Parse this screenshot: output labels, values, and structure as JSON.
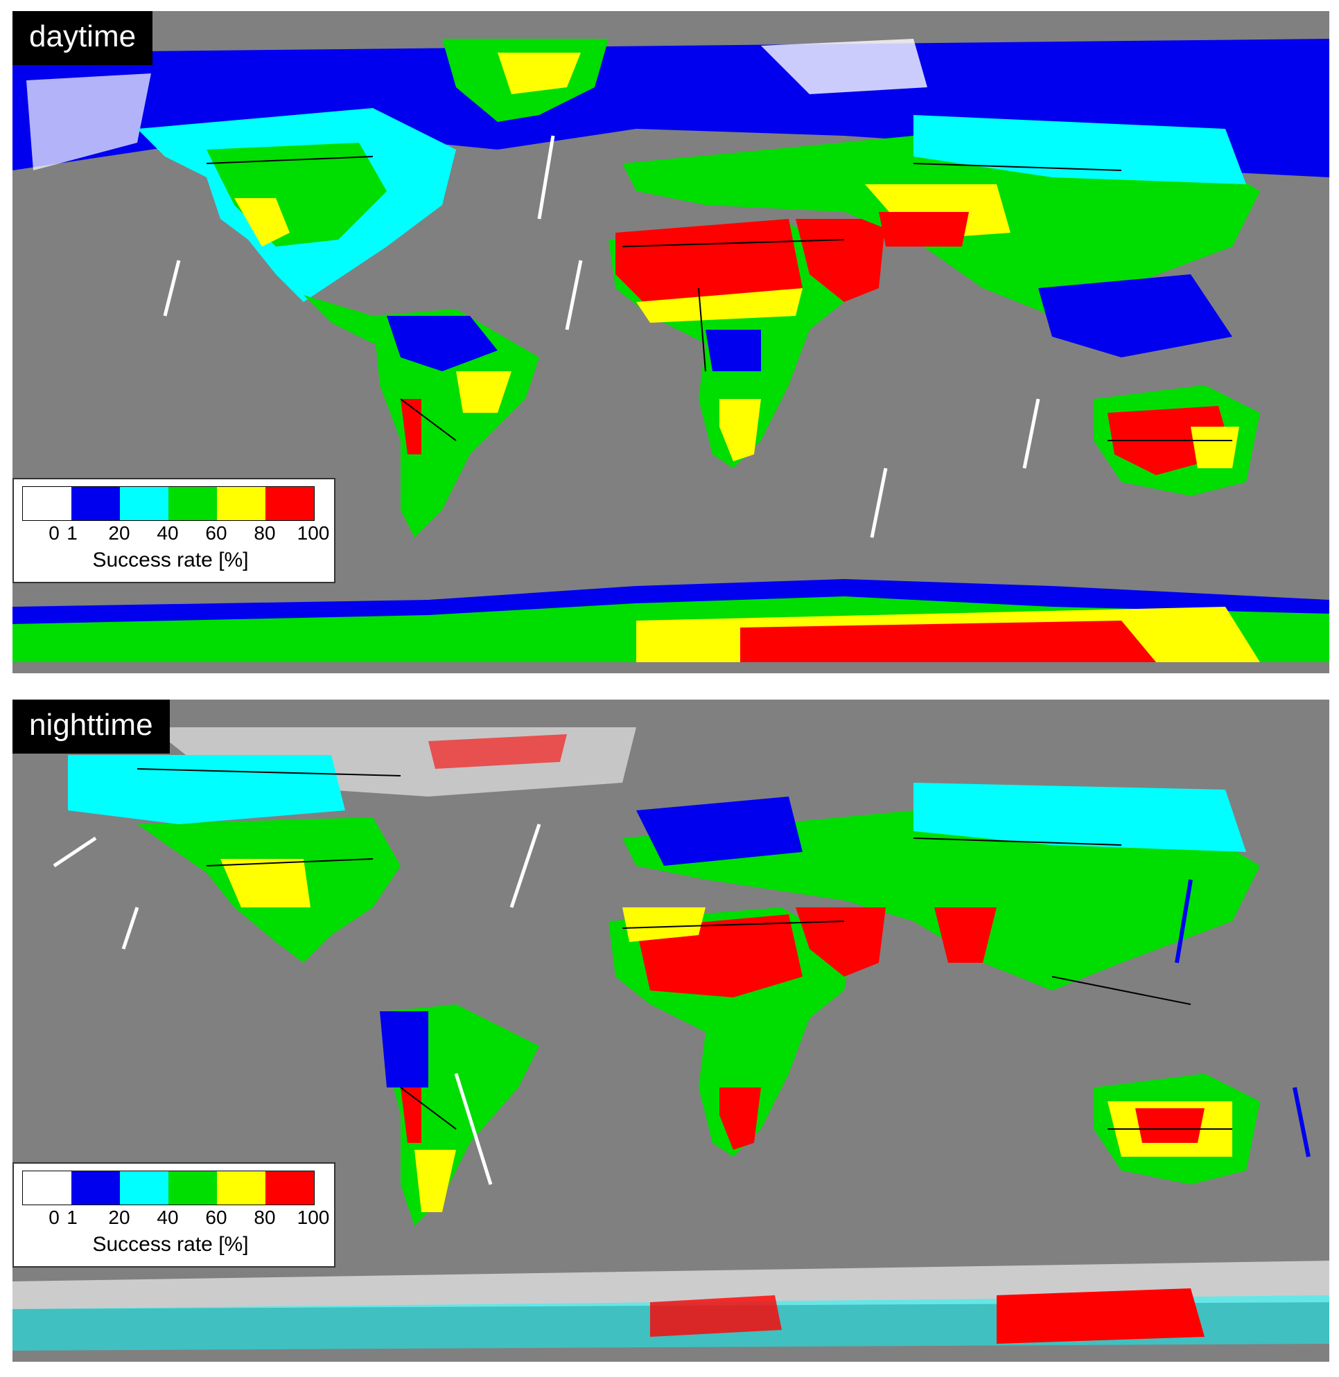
{
  "panels": [
    {
      "id": "day",
      "label": "daytime",
      "legend": {
        "swatches": [
          "#ffffff",
          "#0000ee",
          "#00ffff",
          "#00dd00",
          "#ffff00",
          "#ff0000"
        ],
        "ticks": [
          "0",
          "1",
          "20",
          "40",
          "60",
          "80",
          "100"
        ],
        "title": "Success rate [%]"
      }
    },
    {
      "id": "night",
      "label": "nighttime",
      "legend": {
        "swatches": [
          "#ffffff",
          "#0000ee",
          "#00ffff",
          "#00dd00",
          "#ffff00",
          "#ff0000"
        ],
        "ticks": [
          "0",
          "1",
          "20",
          "40",
          "60",
          "80",
          "100"
        ],
        "title": "Success rate [%]"
      }
    }
  ],
  "colors": {
    "ocean_nodata": "#808080",
    "rate_0": "#ffffff",
    "rate_1_20": "#0000ee",
    "rate_20_40": "#00ffff",
    "rate_40_60": "#00dd00",
    "rate_60_80": "#ffff00",
    "rate_80_100": "#ff0000",
    "borders": "#000000"
  }
}
